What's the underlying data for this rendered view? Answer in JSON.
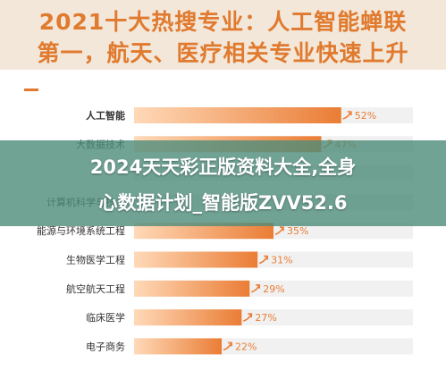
{
  "header": {
    "title_line1": "2021十大热搜专业：人工智能蝉联",
    "title_line2": "第一，航天、医疗相关专业快速上升"
  },
  "banner": {
    "line1": "2024天天彩正版资料大全,全身",
    "line2": "心数据计划_智能版ZVV52.6"
  },
  "colors": {
    "title": "#e07a2e",
    "bar_start": "#ffd9b8",
    "bar_end": "#ea7d35",
    "track": "#f1f1f1",
    "banner": "#4e8c7a"
  },
  "chart_data": {
    "type": "bar",
    "orientation": "horizontal",
    "categories": [
      "人工智能",
      "大数据技术",
      "",
      "计算机科学与技术",
      "能源与环境系统工程",
      "生物医学工程",
      "航空航天工程",
      "临床医学",
      "电子商务"
    ],
    "values": [
      52,
      47,
      null,
      null,
      35,
      31,
      29,
      27,
      22
    ],
    "value_labels": [
      "52%",
      "47%",
      "",
      "",
      "35%",
      "31%",
      "29%",
      "27%",
      "22%"
    ],
    "unit": "%",
    "xlim": [
      0,
      70
    ]
  }
}
